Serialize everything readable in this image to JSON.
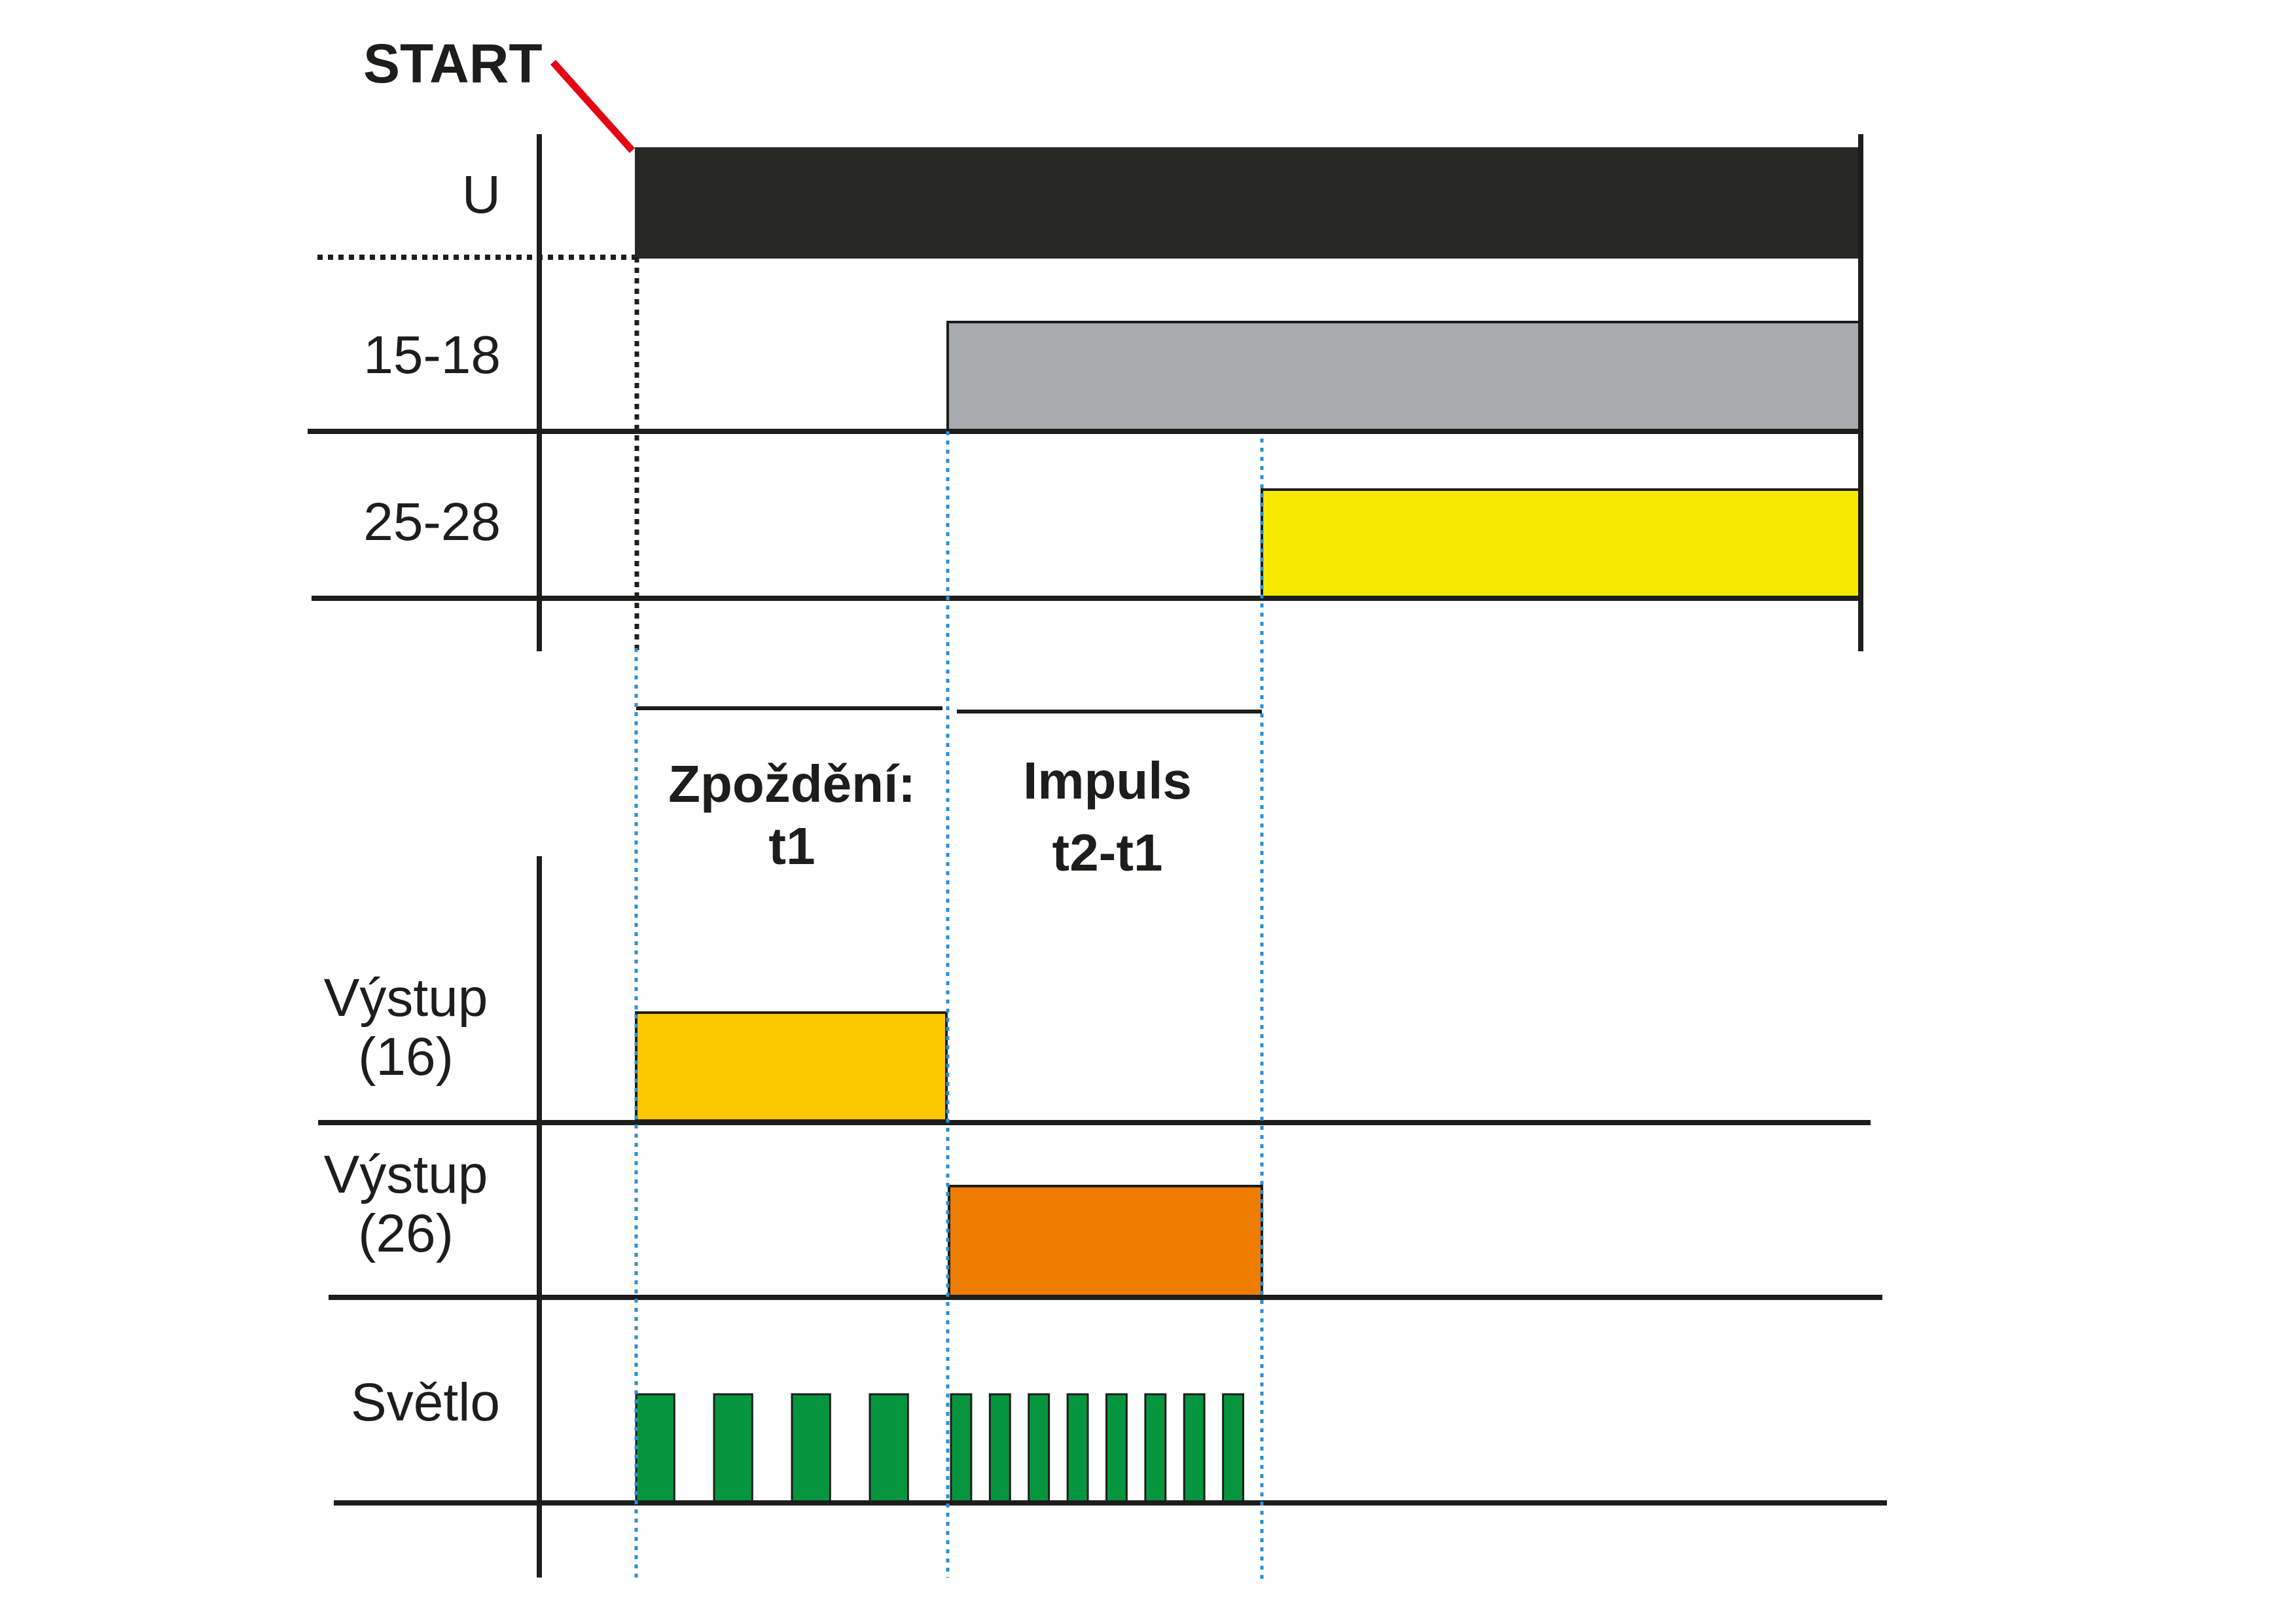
{
  "start_label": "START",
  "signals": {
    "u": "U",
    "r15_18": "15-18",
    "r25_28": "25-28",
    "out16_line1": "Výstup",
    "out16_line2": "(16)",
    "out26_line1": "Výstup",
    "out26_line2": "(26)",
    "light": "Světlo"
  },
  "intervals": {
    "delay_line1": "Zpoždění:",
    "delay_line2": "t1",
    "impulse_line1": "Impuls",
    "impulse_line2": "t2-t1"
  },
  "colors": {
    "u_bar": "#272825",
    "r15_18_bar": "#a7abad",
    "r25_28_bar": "#f8e900",
    "out16_bar": "#fdc800",
    "out26_bar": "#ef7d00",
    "light_pulse": "#05953f",
    "start_marker": "#e30613",
    "guide_line": "#2b8fd6",
    "axis": "#1d1d1b"
  },
  "light_pulses": {
    "slow_count": 4,
    "fast_count": 8
  }
}
